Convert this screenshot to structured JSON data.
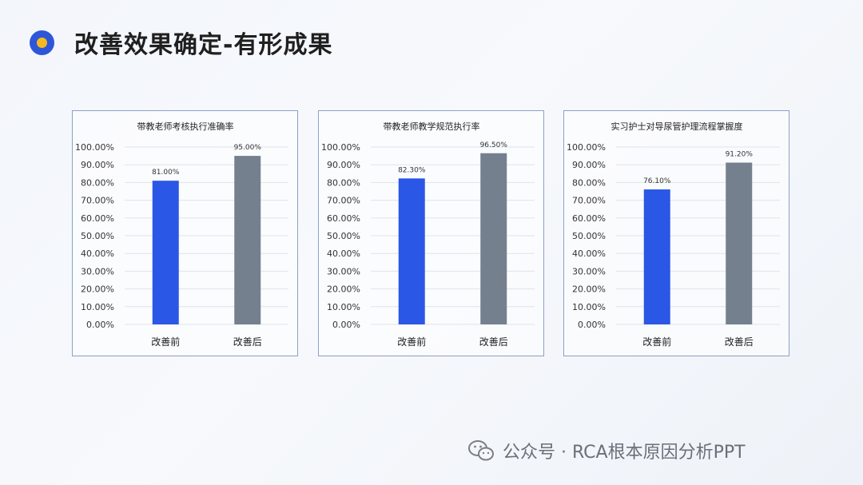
{
  "page": {
    "title": "改善效果确定-有形成果",
    "footer": "公众号 · RCA根本原因分析PPT"
  },
  "colors": {
    "before": "#2b57e6",
    "after": "#75808e",
    "accent_ring": "#2e56d8",
    "accent_dot": "#f5b91f"
  },
  "chart_data": [
    {
      "type": "bar",
      "title": "带教老师考核执行准确率",
      "categories": [
        "改善前",
        "改善后"
      ],
      "values": [
        81.0,
        95.0
      ],
      "value_labels": [
        "81.00%",
        "95.00%"
      ],
      "y_ticks": [
        "0.00%",
        "10.00%",
        "20.00%",
        "30.00%",
        "40.00%",
        "50.00%",
        "60.00%",
        "70.00%",
        "80.00%",
        "90.00%",
        "100.00%"
      ],
      "ylim": [
        0,
        100
      ],
      "grid": true,
      "legend": "none"
    },
    {
      "type": "bar",
      "title": "带教老师教学规范执行率",
      "categories": [
        "改善前",
        "改善后"
      ],
      "values": [
        82.3,
        96.5
      ],
      "value_labels": [
        "82.30%",
        "96.50%"
      ],
      "y_ticks": [
        "0.00%",
        "10.00%",
        "20.00%",
        "30.00%",
        "40.00%",
        "50.00%",
        "60.00%",
        "70.00%",
        "80.00%",
        "90.00%",
        "100.00%"
      ],
      "ylim": [
        0,
        100
      ],
      "grid": true,
      "legend": "none"
    },
    {
      "type": "bar",
      "title": "实习护士对导尿管护理流程掌握度",
      "categories": [
        "改善前",
        "改善后"
      ],
      "values": [
        76.1,
        91.2
      ],
      "value_labels": [
        "76.10%",
        "91.20%"
      ],
      "y_ticks": [
        "0.00%",
        "10.00%",
        "20.00%",
        "30.00%",
        "40.00%",
        "50.00%",
        "60.00%",
        "70.00%",
        "80.00%",
        "90.00%",
        "100.00%"
      ],
      "ylim": [
        0,
        100
      ],
      "grid": true,
      "legend": "none"
    }
  ]
}
